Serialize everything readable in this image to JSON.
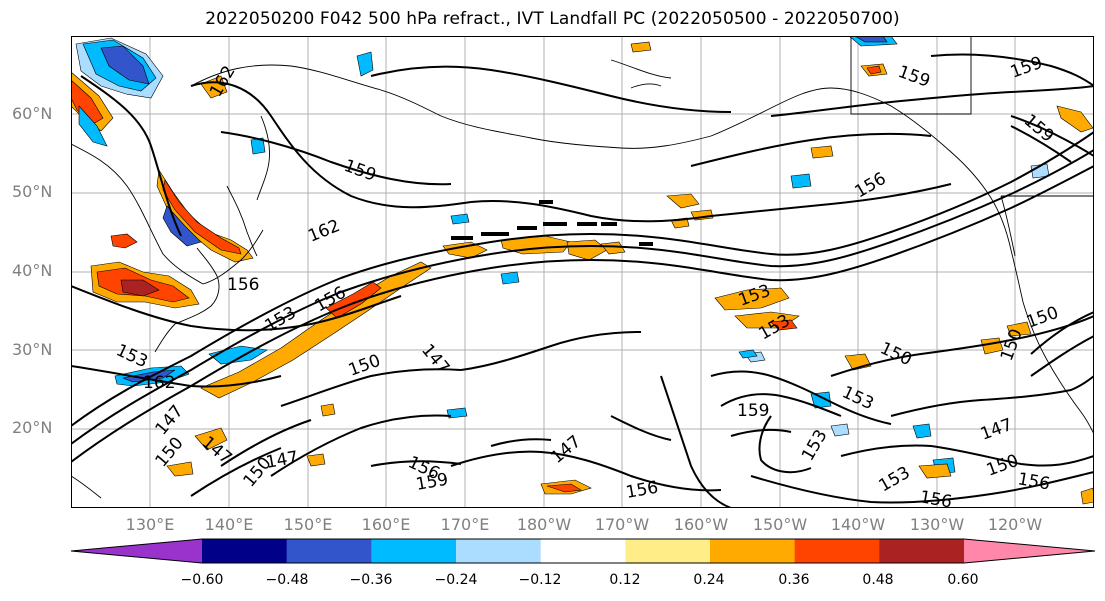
{
  "title": "2022050200 F042 500 hPa refract., IVT Landfall PC (2022050500 - 2022050700)",
  "lat_labels": [
    "60°N",
    "50°N",
    "40°N",
    "30°N",
    "20°N"
  ],
  "lon_labels": [
    "130°E",
    "140°E",
    "150°E",
    "160°E",
    "170°E",
    "180°W",
    "170°W",
    "160°W",
    "150°W",
    "140°W",
    "130°W",
    "120°W"
  ],
  "contour_labels": [
    {
      "text": "162"
    },
    {
      "text": "159"
    },
    {
      "text": "162"
    },
    {
      "text": "156"
    },
    {
      "text": "153"
    },
    {
      "text": "156"
    },
    {
      "text": "153"
    },
    {
      "text": "162"
    },
    {
      "text": "150"
    },
    {
      "text": "147"
    },
    {
      "text": "147"
    },
    {
      "text": "147"
    },
    {
      "text": "150"
    },
    {
      "text": "150"
    },
    {
      "text": "147"
    },
    {
      "text": "156"
    },
    {
      "text": "159"
    },
    {
      "text": "147"
    },
    {
      "text": "156"
    },
    {
      "text": "156"
    },
    {
      "text": "153"
    },
    {
      "text": "153"
    },
    {
      "text": "159"
    },
    {
      "text": "153"
    },
    {
      "text": "150"
    },
    {
      "text": "153"
    },
    {
      "text": "147"
    },
    {
      "text": "150"
    },
    {
      "text": "156"
    },
    {
      "text": "156"
    },
    {
      "text": "153"
    },
    {
      "text": "150"
    },
    {
      "text": "150"
    },
    {
      "text": "159"
    },
    {
      "text": "159"
    },
    {
      "text": "159"
    }
  ],
  "colorbar": {
    "colors": [
      "#9933cc",
      "#000088",
      "#3355cc",
      "#00bbff",
      "#aaddff",
      "#ffffff",
      "#ffee88",
      "#ffaa00",
      "#ff4400",
      "#aa2222",
      "#ff88aa"
    ],
    "tick_labels": [
      "−0.60",
      "−0.48",
      "−0.36",
      "−0.24",
      "−0.12",
      "0.12",
      "0.24",
      "0.36",
      "0.48",
      "0.60"
    ]
  }
}
